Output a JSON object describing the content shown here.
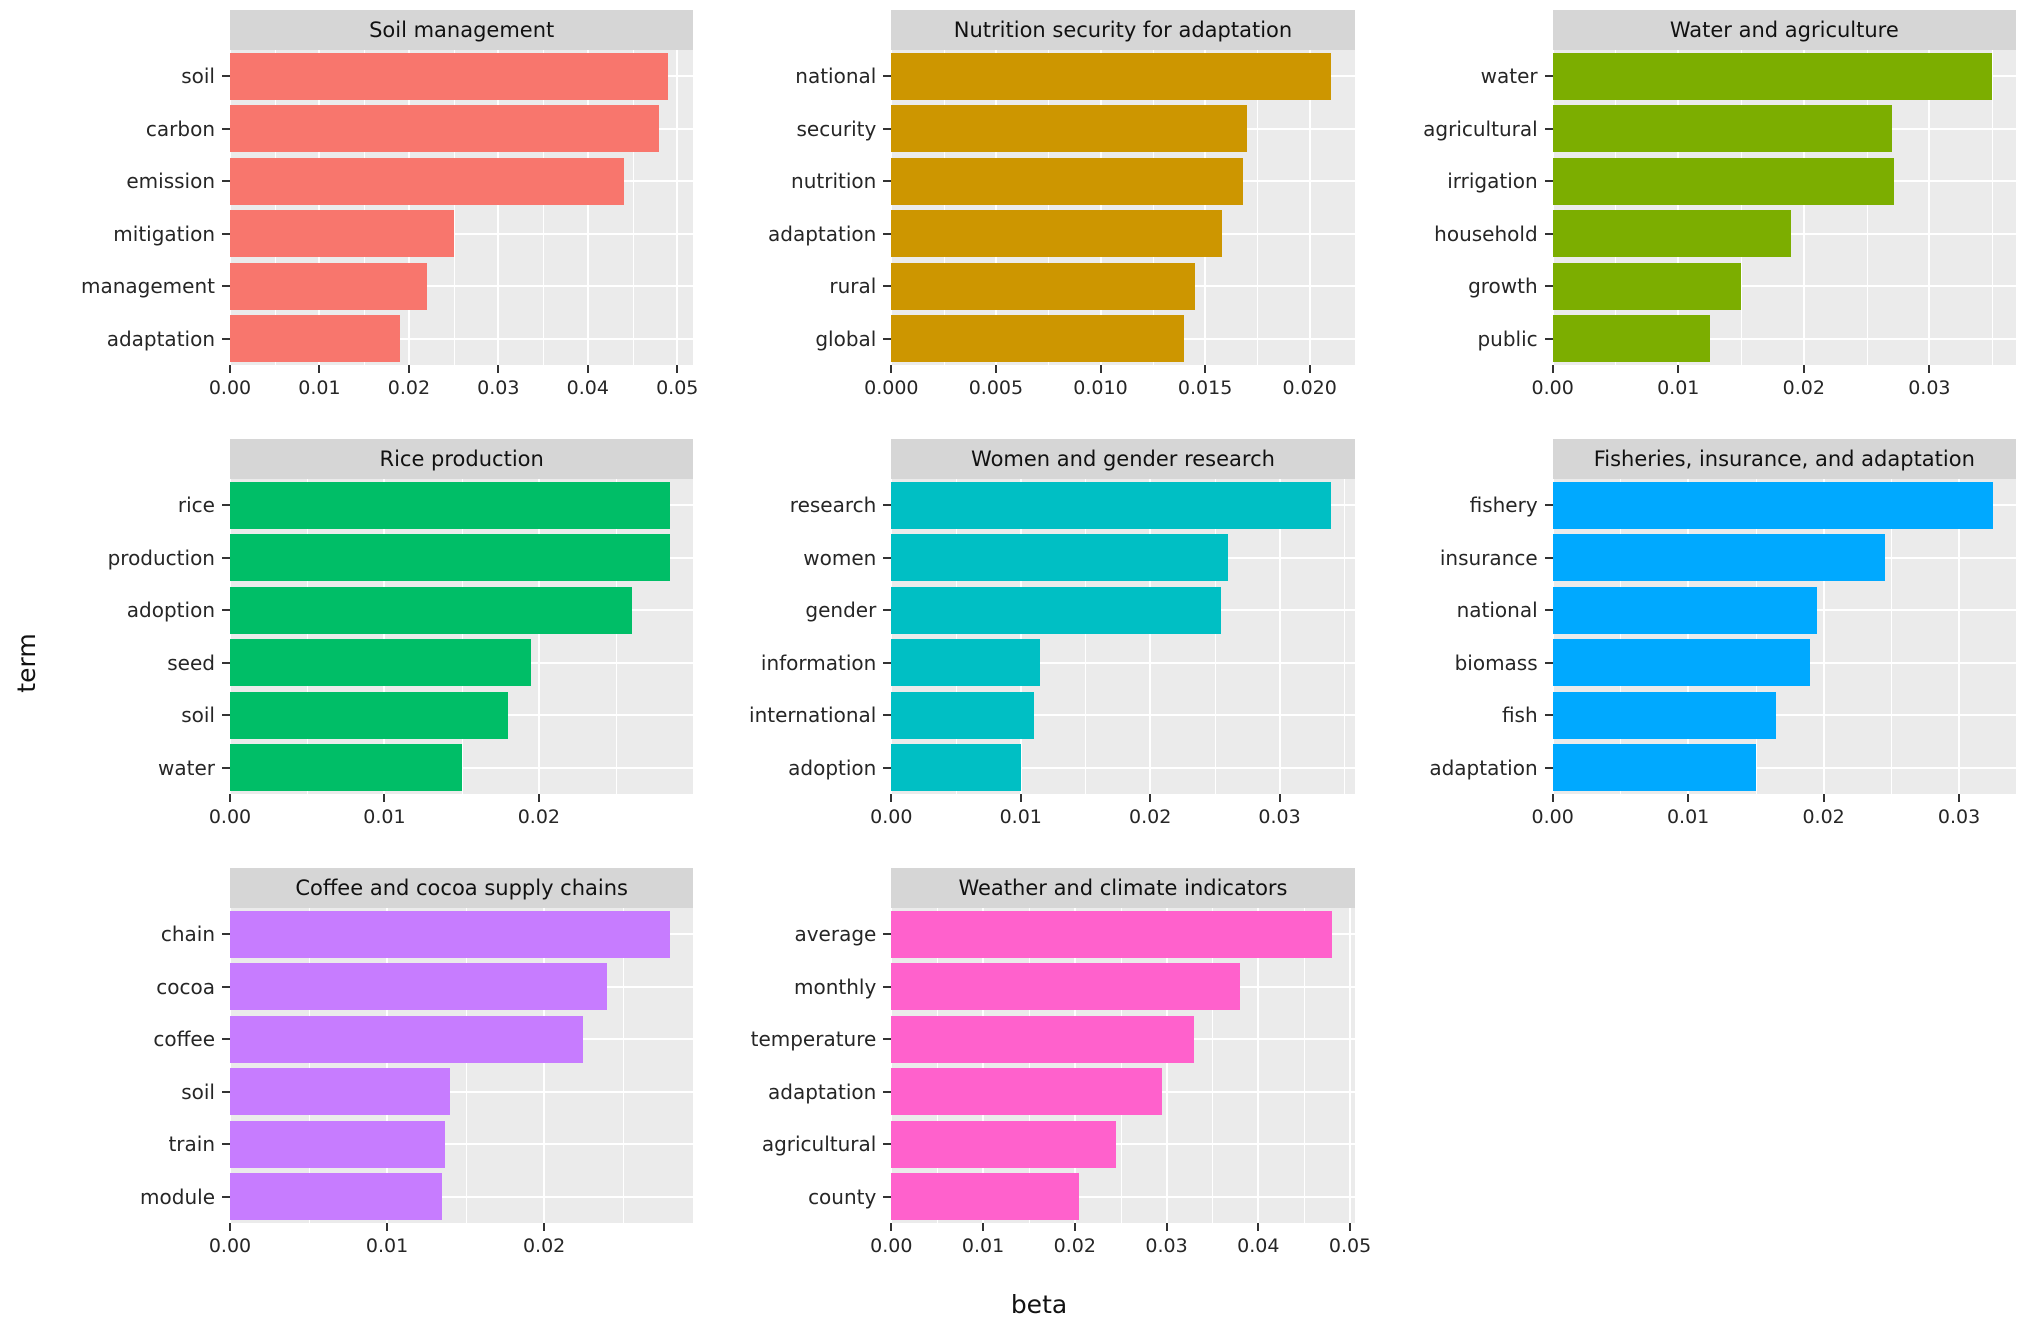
{
  "chart_data": {
    "type": "bar",
    "orientation": "horizontal",
    "x_axis_title": "beta",
    "y_axis_title": "term",
    "facet_layout": {
      "columns": 3,
      "rows": 3
    },
    "panel_background": "#EBEBEB",
    "strip_background": "#D6D6D6",
    "facets": [
      {
        "title": "Soil management",
        "color": "#F8766D",
        "terms": [
          "soil",
          "carbon",
          "emission",
          "mitigation",
          "management",
          "adaptation"
        ],
        "values": [
          0.049,
          0.048,
          0.044,
          0.025,
          0.022,
          0.019
        ],
        "x_ticks": [
          0.0,
          0.01,
          0.02,
          0.03,
          0.04,
          0.05
        ],
        "x_tick_labels": [
          "0.00",
          "0.01",
          "0.02",
          "0.03",
          "0.04",
          "0.05"
        ],
        "xlim": [
          0,
          0.0518
        ]
      },
      {
        "title": "Nutrition security for adaptation",
        "color": "#CD9600",
        "terms": [
          "national",
          "security",
          "nutrition",
          "adaptation",
          "rural",
          "global"
        ],
        "values": [
          0.021,
          0.017,
          0.0168,
          0.0158,
          0.0145,
          0.014
        ],
        "x_ticks": [
          0.0,
          0.005,
          0.01,
          0.015,
          0.02
        ],
        "x_tick_labels": [
          "0.000",
          "0.005",
          "0.010",
          "0.015",
          "0.020"
        ],
        "xlim": [
          0,
          0.02215
        ]
      },
      {
        "title": "Water and agriculture",
        "color": "#7CAE00",
        "terms": [
          "water",
          "agricultural",
          "irrigation",
          "household",
          "growth",
          "public"
        ],
        "values": [
          0.035,
          0.027,
          0.0272,
          0.019,
          0.015,
          0.0125
        ],
        "x_ticks": [
          0.0,
          0.01,
          0.02,
          0.03
        ],
        "x_tick_labels": [
          "0.00",
          "0.01",
          "0.02",
          "0.03"
        ],
        "xlim": [
          0,
          0.0369
        ]
      },
      {
        "title": "Rice production",
        "color": "#00BE67",
        "terms": [
          "rice",
          "production",
          "adoption",
          "seed",
          "soil",
          "water"
        ],
        "values": [
          0.0285,
          0.0285,
          0.026,
          0.0195,
          0.018,
          0.015
        ],
        "x_ticks": [
          0.0,
          0.01,
          0.02
        ],
        "x_tick_labels": [
          "0.00",
          "0.01",
          "0.02"
        ],
        "xlim": [
          0,
          0.03
        ]
      },
      {
        "title": "Women and gender research",
        "color": "#00BFC4",
        "terms": [
          "research",
          "women",
          "gender",
          "information",
          "international",
          "adoption"
        ],
        "values": [
          0.034,
          0.026,
          0.0255,
          0.0115,
          0.011,
          0.01
        ],
        "x_ticks": [
          0.0,
          0.01,
          0.02,
          0.03
        ],
        "x_tick_labels": [
          "0.00",
          "0.01",
          "0.02",
          "0.03"
        ],
        "xlim": [
          0,
          0.0358
        ]
      },
      {
        "title": "Fisheries, insurance, and adaptation",
        "color": "#00A9FF",
        "terms": [
          "fishery",
          "insurance",
          "national",
          "biomass",
          "fish",
          "adaptation"
        ],
        "values": [
          0.0325,
          0.0245,
          0.0195,
          0.019,
          0.0165,
          0.015
        ],
        "x_ticks": [
          0.0,
          0.01,
          0.02,
          0.03
        ],
        "x_tick_labels": [
          "0.00",
          "0.01",
          "0.02",
          "0.03"
        ],
        "xlim": [
          0,
          0.0342
        ]
      },
      {
        "title": "Coffee and cocoa supply chains",
        "color": "#C77CFF",
        "terms": [
          "chain",
          "cocoa",
          "coffee",
          "soil",
          "train",
          "module"
        ],
        "values": [
          0.028,
          0.024,
          0.0225,
          0.014,
          0.0137,
          0.0135
        ],
        "x_ticks": [
          0.0,
          0.01,
          0.02
        ],
        "x_tick_labels": [
          "0.00",
          "0.01",
          "0.02"
        ],
        "xlim": [
          0,
          0.0295
        ]
      },
      {
        "title": "Weather and climate indicators",
        "color": "#FF61CC",
        "terms": [
          "average",
          "monthly",
          "temperature",
          "adaptation",
          "agricultural",
          "county"
        ],
        "values": [
          0.048,
          0.038,
          0.033,
          0.0295,
          0.0245,
          0.0205
        ],
        "x_ticks": [
          0.0,
          0.01,
          0.02,
          0.03,
          0.04,
          0.05
        ],
        "x_tick_labels": [
          "0.00",
          "0.01",
          "0.02",
          "0.03",
          "0.04",
          "0.05"
        ],
        "xlim": [
          0,
          0.0505
        ]
      }
    ]
  }
}
